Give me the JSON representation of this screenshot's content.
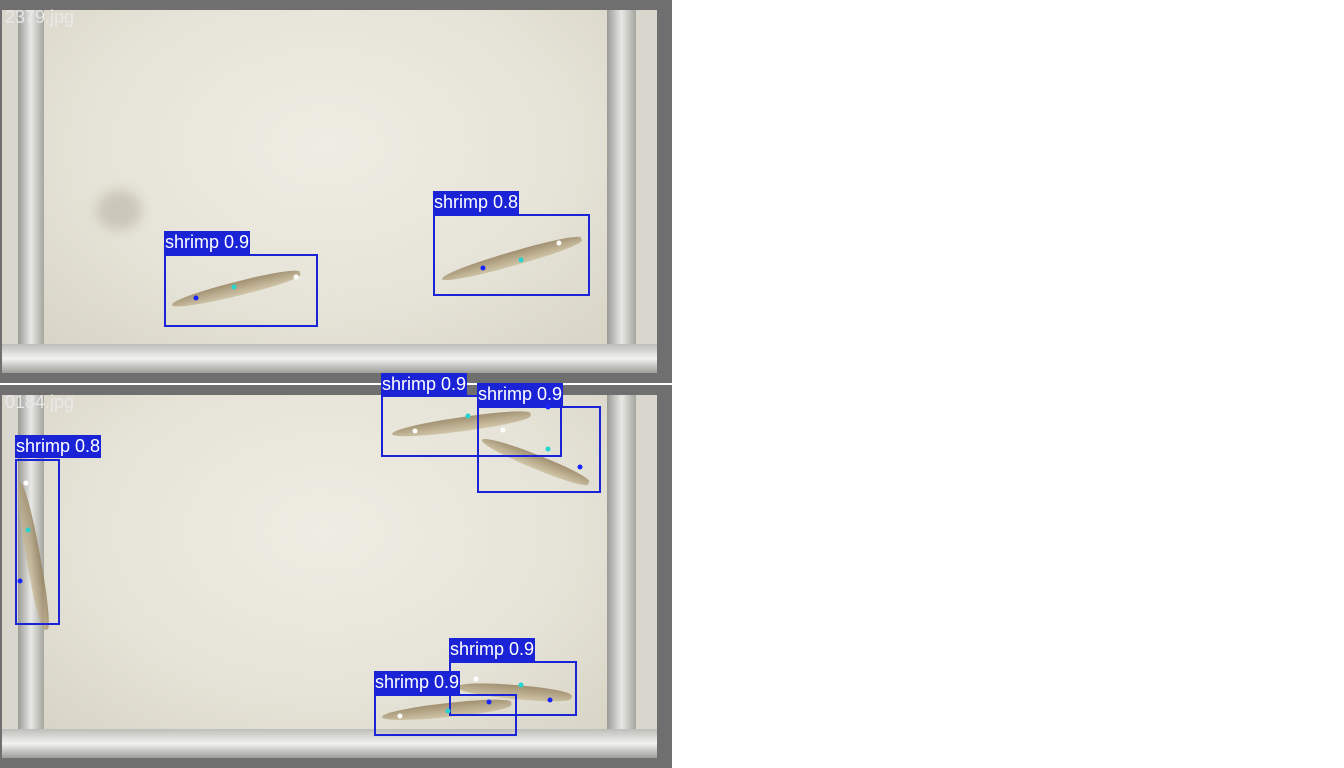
{
  "panels": [
    {
      "filename": "2379.jpg",
      "detections": [
        {
          "label": "shrimp 0.9"
        },
        {
          "label": "shrimp 0.8"
        }
      ]
    },
    {
      "filename": "0184.jpg",
      "detections": [
        {
          "label": "shrimp 0.8"
        },
        {
          "label": "shrimp 0.9"
        },
        {
          "label": "shrimp 0.9"
        },
        {
          "label": "shrimp 0.9"
        },
        {
          "label": "shrimp 0.9"
        }
      ]
    }
  ],
  "colors": {
    "box": "#1a24d6",
    "keypoint_head": "#1a24ff",
    "keypoint_mid": "#27d4d0",
    "keypoint_tail": "#ffffff",
    "panel_frame": "#6f6f6f"
  }
}
